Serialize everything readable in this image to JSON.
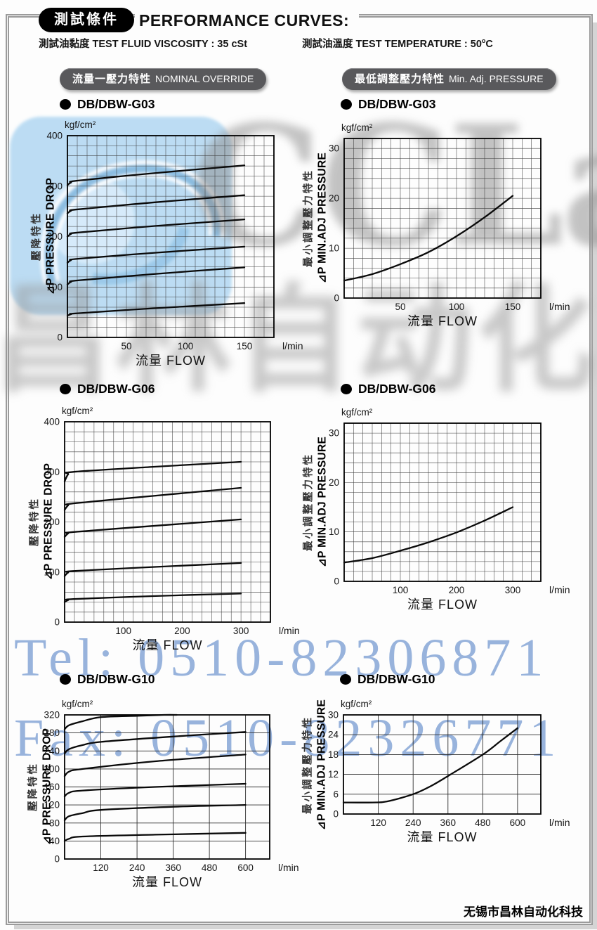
{
  "header": {
    "badge": "測試條件",
    "title": "PERFORMANCE CURVES:",
    "condition_left": "測試油黏度  TEST FLUID VISCOSITY : 35 cSt",
    "condition_right_main": "測試油溫度  TEST TEMPERATURE : 50",
    "condition_right_sup": "o",
    "condition_right_end": "C"
  },
  "section_headers": {
    "left_cn": "流量一壓力特性",
    "left_en": "NOMINAL OVERRIDE",
    "right_cn": "最低調整壓力特性",
    "right_en": "Min. Adj. PRESSURE"
  },
  "watermarks": {
    "brand": "CCLair",
    "brand_cn": "昌林自动化",
    "tel": "Tel: 0510-82306871",
    "fax": "Fax: 0510-82326771"
  },
  "footer": {
    "company": "无锡市昌林自动化科技"
  },
  "chart_data": [
    {
      "model": "DB/DBW-G03",
      "type": "line",
      "section": "NOMINAL OVERRIDE",
      "y_unit": "kgf/cm²",
      "ylabel_cn": "壓降特性",
      "ylabel_en": "⊿P PRESSURE DROP",
      "xlabel": "流量 FLOW",
      "x_unit": "l/min",
      "xlim": [
        0,
        175
      ],
      "ylim": [
        0,
        400
      ],
      "x_ticks": [
        50,
        100,
        150
      ],
      "y_ticks": [
        0,
        100,
        200,
        300,
        400
      ],
      "x_grid_step": 8.3333,
      "y_grid_step": 20,
      "grid": "fine",
      "series": [
        {
          "points": [
            [
              0,
              302
            ],
            [
              3,
              307
            ],
            [
              9,
              311
            ],
            [
              75,
              326
            ],
            [
              150,
              341
            ]
          ]
        },
        {
          "points": [
            [
              0,
              246
            ],
            [
              3,
              251
            ],
            [
              9,
              254
            ],
            [
              75,
              268
            ],
            [
              150,
              282
            ]
          ]
        },
        {
          "points": [
            [
              0,
              200
            ],
            [
              3,
              205
            ],
            [
              9,
              208
            ],
            [
              75,
              221
            ],
            [
              150,
              234
            ]
          ]
        },
        {
          "points": [
            [
              0,
              148
            ],
            [
              3,
              153
            ],
            [
              9,
              156
            ],
            [
              75,
              168
            ],
            [
              150,
              180
            ]
          ]
        },
        {
          "points": [
            [
              0,
              105
            ],
            [
              3,
              110
            ],
            [
              9,
              113
            ],
            [
              75,
              126
            ],
            [
              150,
              139
            ]
          ]
        },
        {
          "points": [
            [
              0,
              43
            ],
            [
              3,
              46
            ],
            [
              9,
              48
            ],
            [
              75,
              58
            ],
            [
              150,
              68
            ]
          ]
        }
      ]
    },
    {
      "model": "DB/DBW-G03",
      "type": "line",
      "section": "Min. Adj. PRESSURE",
      "y_unit": "kgf/cm²",
      "ylabel_cn": "最小調整壓力特性",
      "ylabel_en": "⊿P MIN.ADJ PRESSURE",
      "xlabel": "流量 FLOW",
      "x_unit": "l/min",
      "xlim": [
        0,
        175
      ],
      "ylim": [
        0,
        32
      ],
      "x_ticks": [
        50,
        100,
        150
      ],
      "y_ticks": [
        0,
        10,
        20,
        30
      ],
      "x_grid_step": 8.3333,
      "y_grid_step": 2,
      "grid": "fine",
      "series": [
        {
          "points": [
            [
              0,
              3.5
            ],
            [
              25,
              4.8
            ],
            [
              50,
              6.8
            ],
            [
              75,
              9.2
            ],
            [
              100,
              12.4
            ],
            [
              125,
              16.2
            ],
            [
              150,
              20.5
            ]
          ]
        }
      ]
    },
    {
      "model": "DB/DBW-G06",
      "type": "line",
      "section": "NOMINAL OVERRIDE",
      "y_unit": "kgf/cm²",
      "ylabel_cn": "壓降特性",
      "ylabel_en": "⊿P PRESSURE DROP",
      "xlabel": "流量 FLOW",
      "x_unit": "l/min",
      "xlim": [
        0,
        350
      ],
      "ylim": [
        0,
        400
      ],
      "x_ticks": [
        100,
        200,
        300
      ],
      "y_ticks": [
        0,
        100,
        200,
        300,
        400
      ],
      "x_grid_step": 16.6667,
      "y_grid_step": 20,
      "grid": "fine",
      "series": [
        {
          "points": [
            [
              0,
              281
            ],
            [
              6,
              295
            ],
            [
              15,
              300
            ],
            [
              150,
              310
            ],
            [
              300,
              320
            ]
          ]
        },
        {
          "points": [
            [
              0,
              224
            ],
            [
              6,
              233
            ],
            [
              15,
              237
            ],
            [
              150,
              252
            ],
            [
              300,
              268
            ]
          ]
        },
        {
          "points": [
            [
              0,
              170
            ],
            [
              6,
              177
            ],
            [
              15,
              180
            ],
            [
              150,
              192
            ],
            [
              300,
              205
            ]
          ]
        },
        {
          "points": [
            [
              0,
              92
            ],
            [
              6,
              99
            ],
            [
              15,
              102
            ],
            [
              150,
              110
            ],
            [
              300,
              118
            ]
          ]
        },
        {
          "points": [
            [
              0,
              40
            ],
            [
              6,
              44
            ],
            [
              15,
              46
            ],
            [
              150,
              52
            ],
            [
              300,
              57
            ]
          ]
        }
      ]
    },
    {
      "model": "DB/DBW-G06",
      "type": "line",
      "section": "Min. Adj. PRESSURE",
      "y_unit": "kgf/cm²",
      "ylabel_cn": "最小調整壓力特性",
      "ylabel_en": "⊿P MIN.ADJ PRESSURE",
      "xlabel": "流量 FLOW",
      "x_unit": "l/min",
      "xlim": [
        0,
        350
      ],
      "ylim": [
        0,
        32
      ],
      "x_ticks": [
        100,
        200,
        300
      ],
      "y_ticks": [
        0,
        10,
        20,
        30
      ],
      "x_grid_step": 16.6667,
      "y_grid_step": 2,
      "grid": "fine",
      "series": [
        {
          "points": [
            [
              0,
              3.8
            ],
            [
              50,
              4.7
            ],
            [
              100,
              6.2
            ],
            [
              150,
              7.9
            ],
            [
              200,
              9.9
            ],
            [
              250,
              12.3
            ],
            [
              300,
              15
            ]
          ]
        }
      ]
    },
    {
      "model": "DB/DBW-G10",
      "type": "line",
      "section": "NOMINAL OVERRIDE",
      "y_unit": "kgf/cm²",
      "ylabel_cn": "壓降特性",
      "ylabel_en": "⊿P PRESSURE DROP",
      "xlabel": "流量 FLOW",
      "x_unit": "l/min",
      "xlim": [
        0,
        680
      ],
      "ylim": [
        0,
        320
      ],
      "x_ticks": [
        120,
        240,
        360,
        480,
        600
      ],
      "y_ticks": [
        0,
        40,
        80,
        120,
        160,
        200,
        240,
        280,
        320
      ],
      "x_grid_step": 120,
      "y_grid_step": 40,
      "grid": "major",
      "series": [
        {
          "points": [
            [
              0,
              288
            ],
            [
              15,
              297
            ],
            [
              60,
              306
            ],
            [
              120,
              315
            ],
            [
              240,
              318
            ],
            [
              330,
              320
            ],
            [
              372,
              320
            ]
          ]
        },
        {
          "points": [
            [
              0,
              234
            ],
            [
              15,
              244
            ],
            [
              60,
              253
            ],
            [
              120,
              260
            ],
            [
              360,
              272
            ],
            [
              600,
              282
            ]
          ]
        },
        {
          "points": [
            [
              0,
              184
            ],
            [
              15,
              194
            ],
            [
              60,
              200
            ],
            [
              300,
              217
            ],
            [
              600,
              232
            ]
          ]
        },
        {
          "points": [
            [
              0,
              139
            ],
            [
              15,
              147
            ],
            [
              60,
              152
            ],
            [
              300,
              160
            ],
            [
              600,
              167
            ]
          ]
        },
        {
          "points": [
            [
              0,
              86
            ],
            [
              15,
              95
            ],
            [
              60,
              102
            ],
            [
              120,
              109
            ],
            [
              360,
              116
            ],
            [
              600,
              120
            ]
          ]
        },
        {
          "points": [
            [
              0,
              40
            ],
            [
              15,
              45
            ],
            [
              60,
              50
            ],
            [
              300,
              54
            ],
            [
              600,
              58
            ]
          ]
        }
      ]
    },
    {
      "model": "DB/DBW-G10",
      "type": "line",
      "section": "Min. Adj. PRESSURE",
      "y_unit": "kgf/cm²",
      "ylabel_cn": "最小調整壓力特性",
      "ylabel_en": "⊿P MIN.ADJ PRESSURE",
      "xlabel": "流量 FLOW",
      "x_unit": "l/min",
      "xlim": [
        0,
        680
      ],
      "ylim": [
        0,
        30
      ],
      "x_ticks": [
        120,
        240,
        360,
        480,
        600
      ],
      "y_ticks": [
        0,
        6,
        12,
        18,
        24,
        30
      ],
      "x_grid_step": 120,
      "y_grid_step": 6,
      "grid": "major",
      "series": [
        {
          "points": [
            [
              0,
              3.5
            ],
            [
              100,
              3.5
            ],
            [
              150,
              3.8
            ],
            [
              240,
              6
            ],
            [
              300,
              8.4
            ],
            [
              360,
              11.5
            ],
            [
              480,
              18
            ],
            [
              540,
              22
            ],
            [
              600,
              26
            ]
          ]
        }
      ]
    }
  ]
}
